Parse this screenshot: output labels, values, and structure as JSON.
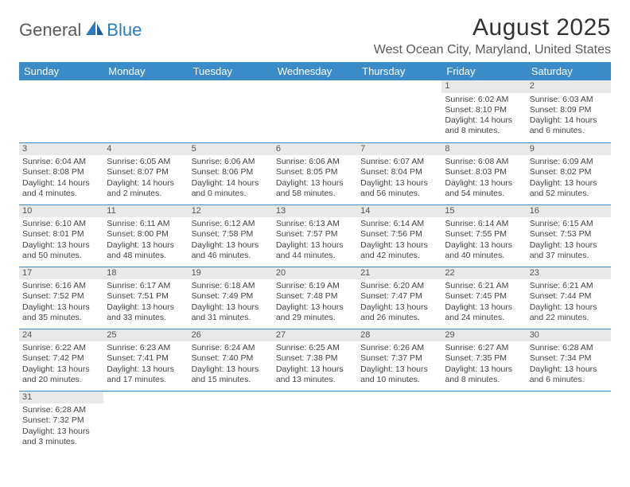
{
  "brand": {
    "part1": "General",
    "part2": "Blue"
  },
  "title": "August 2025",
  "location": "West Ocean City, Maryland, United States",
  "colors": {
    "header_bg": "#3b8bc9",
    "header_text": "#ffffff",
    "daynum_bg": "#e9e9e9",
    "border": "#3b8bc9",
    "brand_blue": "#2b7bbf",
    "brand_gray": "#5a5a5a"
  },
  "day_headers": [
    "Sunday",
    "Monday",
    "Tuesday",
    "Wednesday",
    "Thursday",
    "Friday",
    "Saturday"
  ],
  "weeks": [
    [
      null,
      null,
      null,
      null,
      null,
      {
        "n": "1",
        "sr": "6:02 AM",
        "ss": "8:10 PM",
        "dl": "14 hours and 8 minutes."
      },
      {
        "n": "2",
        "sr": "6:03 AM",
        "ss": "8:09 PM",
        "dl": "14 hours and 6 minutes."
      }
    ],
    [
      {
        "n": "3",
        "sr": "6:04 AM",
        "ss": "8:08 PM",
        "dl": "14 hours and 4 minutes."
      },
      {
        "n": "4",
        "sr": "6:05 AM",
        "ss": "8:07 PM",
        "dl": "14 hours and 2 minutes."
      },
      {
        "n": "5",
        "sr": "6:06 AM",
        "ss": "8:06 PM",
        "dl": "14 hours and 0 minutes."
      },
      {
        "n": "6",
        "sr": "6:06 AM",
        "ss": "8:05 PM",
        "dl": "13 hours and 58 minutes."
      },
      {
        "n": "7",
        "sr": "6:07 AM",
        "ss": "8:04 PM",
        "dl": "13 hours and 56 minutes."
      },
      {
        "n": "8",
        "sr": "6:08 AM",
        "ss": "8:03 PM",
        "dl": "13 hours and 54 minutes."
      },
      {
        "n": "9",
        "sr": "6:09 AM",
        "ss": "8:02 PM",
        "dl": "13 hours and 52 minutes."
      }
    ],
    [
      {
        "n": "10",
        "sr": "6:10 AM",
        "ss": "8:01 PM",
        "dl": "13 hours and 50 minutes."
      },
      {
        "n": "11",
        "sr": "6:11 AM",
        "ss": "8:00 PM",
        "dl": "13 hours and 48 minutes."
      },
      {
        "n": "12",
        "sr": "6:12 AM",
        "ss": "7:58 PM",
        "dl": "13 hours and 46 minutes."
      },
      {
        "n": "13",
        "sr": "6:13 AM",
        "ss": "7:57 PM",
        "dl": "13 hours and 44 minutes."
      },
      {
        "n": "14",
        "sr": "6:14 AM",
        "ss": "7:56 PM",
        "dl": "13 hours and 42 minutes."
      },
      {
        "n": "15",
        "sr": "6:14 AM",
        "ss": "7:55 PM",
        "dl": "13 hours and 40 minutes."
      },
      {
        "n": "16",
        "sr": "6:15 AM",
        "ss": "7:53 PM",
        "dl": "13 hours and 37 minutes."
      }
    ],
    [
      {
        "n": "17",
        "sr": "6:16 AM",
        "ss": "7:52 PM",
        "dl": "13 hours and 35 minutes."
      },
      {
        "n": "18",
        "sr": "6:17 AM",
        "ss": "7:51 PM",
        "dl": "13 hours and 33 minutes."
      },
      {
        "n": "19",
        "sr": "6:18 AM",
        "ss": "7:49 PM",
        "dl": "13 hours and 31 minutes."
      },
      {
        "n": "20",
        "sr": "6:19 AM",
        "ss": "7:48 PM",
        "dl": "13 hours and 29 minutes."
      },
      {
        "n": "21",
        "sr": "6:20 AM",
        "ss": "7:47 PM",
        "dl": "13 hours and 26 minutes."
      },
      {
        "n": "22",
        "sr": "6:21 AM",
        "ss": "7:45 PM",
        "dl": "13 hours and 24 minutes."
      },
      {
        "n": "23",
        "sr": "6:21 AM",
        "ss": "7:44 PM",
        "dl": "13 hours and 22 minutes."
      }
    ],
    [
      {
        "n": "24",
        "sr": "6:22 AM",
        "ss": "7:42 PM",
        "dl": "13 hours and 20 minutes."
      },
      {
        "n": "25",
        "sr": "6:23 AM",
        "ss": "7:41 PM",
        "dl": "13 hours and 17 minutes."
      },
      {
        "n": "26",
        "sr": "6:24 AM",
        "ss": "7:40 PM",
        "dl": "13 hours and 15 minutes."
      },
      {
        "n": "27",
        "sr": "6:25 AM",
        "ss": "7:38 PM",
        "dl": "13 hours and 13 minutes."
      },
      {
        "n": "28",
        "sr": "6:26 AM",
        "ss": "7:37 PM",
        "dl": "13 hours and 10 minutes."
      },
      {
        "n": "29",
        "sr": "6:27 AM",
        "ss": "7:35 PM",
        "dl": "13 hours and 8 minutes."
      },
      {
        "n": "30",
        "sr": "6:28 AM",
        "ss": "7:34 PM",
        "dl": "13 hours and 6 minutes."
      }
    ],
    [
      {
        "n": "31",
        "sr": "6:28 AM",
        "ss": "7:32 PM",
        "dl": "13 hours and 3 minutes."
      },
      null,
      null,
      null,
      null,
      null,
      null
    ]
  ],
  "labels": {
    "sunrise": "Sunrise: ",
    "sunset": "Sunset: ",
    "daylight": "Daylight: "
  }
}
